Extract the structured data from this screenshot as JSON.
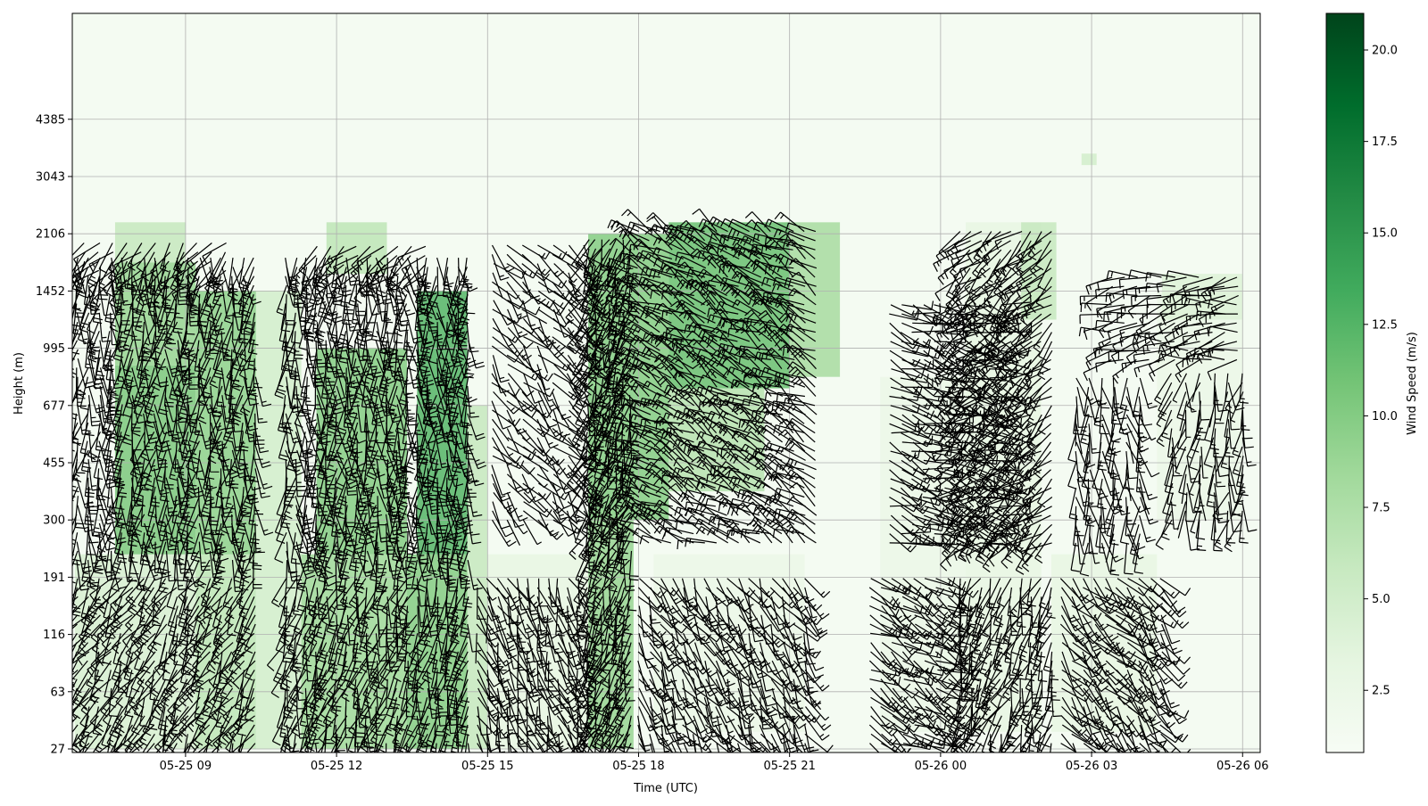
{
  "chart_data": {
    "type": "heatmap",
    "title": "",
    "xlabel": "Time (UTC)",
    "ylabel": "Height (m)",
    "x_tick_labels": [
      "05-25 09",
      "05-25 12",
      "05-25 15",
      "05-25 18",
      "05-25 21",
      "05-26 00",
      "05-26 03",
      "05-26 06"
    ],
    "x_tick_hours": [
      9,
      12,
      15,
      18,
      21,
      24,
      27,
      30
    ],
    "xlim_hours": [
      6.75,
      30.35
    ],
    "y_tick_labels": [
      "27",
      "63",
      "116",
      "191",
      "300",
      "455",
      "677",
      "995",
      "1452",
      "2106",
      "3043",
      "4385"
    ],
    "y_level_count_visible": 12.85,
    "grid": true,
    "colormap": "Greens",
    "colorbar": {
      "label": "Wind Speed (m/s)",
      "min": 0.8,
      "max": 21.0,
      "tick_values": [
        2.5,
        5.0,
        7.5,
        10.0,
        12.5,
        15.0,
        17.5,
        20.0
      ],
      "tick_labels": [
        "2.5",
        "5.0",
        "7.5",
        "10.0",
        "12.5",
        "15.0",
        "17.5",
        "20.0"
      ]
    },
    "levels": [
      {
        "height": "27"
      },
      {
        "height": "63"
      },
      {
        "height": "116"
      },
      {
        "height": "191"
      },
      {
        "height": "300"
      },
      {
        "height": "455"
      },
      {
        "height": "677"
      },
      {
        "height": "995"
      },
      {
        "height": "1452"
      },
      {
        "height": "2106"
      },
      {
        "height": "3043"
      },
      {
        "height": "4385"
      }
    ],
    "speed_regions": [
      {
        "t0": 6.8,
        "t1": 9.2,
        "h0": 0.0,
        "h1": 3.4,
        "speed": 4.5
      },
      {
        "t0": 7.6,
        "t1": 9.2,
        "h0": 3.4,
        "h1": 6.7,
        "speed": 10.5
      },
      {
        "t0": 7.6,
        "t1": 9.2,
        "h0": 6.7,
        "h1": 8.5,
        "speed": 9.0
      },
      {
        "t0": 7.6,
        "t1": 9.0,
        "h0": 8.5,
        "h1": 9.2,
        "speed": 6.0
      },
      {
        "t0": 9.2,
        "t1": 10.4,
        "h0": 0.0,
        "h1": 3.4,
        "speed": 6.5
      },
      {
        "t0": 9.2,
        "t1": 10.4,
        "h0": 3.4,
        "h1": 8.0,
        "speed": 9.5
      },
      {
        "t0": 10.4,
        "t1": 11.3,
        "h0": 0.0,
        "h1": 8.0,
        "speed": 5.0
      },
      {
        "t0": 11.3,
        "t1": 13.4,
        "h0": 0.0,
        "h1": 3.4,
        "speed": 8.5
      },
      {
        "t0": 11.6,
        "t1": 13.4,
        "h0": 3.4,
        "h1": 7.0,
        "speed": 10.0
      },
      {
        "t0": 11.8,
        "t1": 13.0,
        "h0": 8.3,
        "h1": 9.2,
        "speed": 6.5
      },
      {
        "t0": 13.4,
        "t1": 14.6,
        "h0": 0.0,
        "h1": 3.4,
        "speed": 10.0
      },
      {
        "t0": 13.6,
        "t1": 14.6,
        "h0": 3.4,
        "h1": 8.0,
        "speed": 12.5
      },
      {
        "t0": 14.6,
        "t1": 15.0,
        "h0": 0.0,
        "h1": 6.0,
        "speed": 6.0
      },
      {
        "t0": 15.0,
        "t1": 17.0,
        "h0": 0.0,
        "h1": 3.4,
        "speed": 3.0
      },
      {
        "t0": 17.0,
        "t1": 17.9,
        "h0": 0.0,
        "h1": 4.0,
        "speed": 9.0
      },
      {
        "t0": 17.0,
        "t1": 18.6,
        "h0": 4.0,
        "h1": 9.0,
        "speed": 10.0
      },
      {
        "t0": 18.6,
        "t1": 21.0,
        "h0": 6.3,
        "h1": 9.2,
        "speed": 11.5
      },
      {
        "t0": 18.6,
        "t1": 20.5,
        "h0": 4.5,
        "h1": 6.3,
        "speed": 7.0
      },
      {
        "t0": 21.0,
        "t1": 22.0,
        "h0": 6.5,
        "h1": 9.2,
        "speed": 8.0
      },
      {
        "t0": 18.3,
        "t1": 21.3,
        "h0": 0.3,
        "h1": 3.4,
        "speed": 2.5
      },
      {
        "t0": 22.8,
        "t1": 24.5,
        "h0": 0.3,
        "h1": 6.5,
        "speed": 2.5
      },
      {
        "t0": 24.5,
        "t1": 26.0,
        "h0": 0.3,
        "h1": 9.2,
        "speed": 3.0
      },
      {
        "t0": 25.6,
        "t1": 26.3,
        "h0": 7.5,
        "h1": 9.2,
        "speed": 6.0
      },
      {
        "t0": 26.2,
        "t1": 28.3,
        "h0": 0.3,
        "h1": 3.4,
        "speed": 3.0
      },
      {
        "t0": 28.3,
        "t1": 30.0,
        "h0": 4.0,
        "h1": 8.0,
        "speed": 2.5
      },
      {
        "t0": 28.4,
        "t1": 30.0,
        "h0": 7.5,
        "h1": 8.3,
        "speed": 4.0
      },
      {
        "t0": 26.8,
        "t1": 27.1,
        "h0": 10.2,
        "h1": 10.4,
        "speed": 5.0
      }
    ],
    "barb_columns": [
      {
        "t0": 6.85,
        "t1": 10.5,
        "step": 0.22,
        "h0": 0.1,
        "h1": 3.1,
        "dir": 210,
        "mag": 1.3
      },
      {
        "t0": 6.85,
        "t1": 10.5,
        "step": 0.22,
        "h0": 3.3,
        "h1": 8.7,
        "dir": 185,
        "mag": 1.5
      },
      {
        "t0": 7.0,
        "t1": 9.8,
        "step": 0.28,
        "h0": 8.2,
        "h1": 8.9,
        "dir": 220,
        "mag": 1.2
      },
      {
        "t0": 11.0,
        "t1": 14.7,
        "step": 0.2,
        "h0": 0.1,
        "h1": 3.1,
        "dir": 195,
        "mag": 1.4
      },
      {
        "t0": 11.0,
        "t1": 14.7,
        "step": 0.2,
        "h0": 3.3,
        "h1": 8.7,
        "dir": 180,
        "mag": 1.6
      },
      {
        "t0": 11.6,
        "t1": 13.8,
        "step": 0.27,
        "h0": 8.3,
        "h1": 8.9,
        "dir": 230,
        "mag": 1.2
      },
      {
        "t0": 14.8,
        "t1": 16.9,
        "step": 0.2,
        "h0": 0.1,
        "h1": 3.1,
        "dir": 160,
        "mag": 0.9
      },
      {
        "t0": 15.1,
        "t1": 16.9,
        "step": 0.3,
        "h0": 4.0,
        "h1": 8.8,
        "dir": 140,
        "mag": 0.8
      },
      {
        "t0": 17.0,
        "t1": 17.9,
        "step": 0.14,
        "h0": 0.1,
        "h1": 3.1,
        "dir": 200,
        "mag": 1.2
      },
      {
        "t0": 17.0,
        "t1": 17.9,
        "step": 0.14,
        "h0": 3.3,
        "h1": 8.9,
        "dir": 200,
        "mag": 1.4
      },
      {
        "t0": 18.0,
        "t1": 21.3,
        "step": 0.22,
        "h0": 0.1,
        "h1": 3.1,
        "dir": 150,
        "mag": 0.9
      },
      {
        "t0": 18.0,
        "t1": 21.6,
        "step": 0.22,
        "h0": 3.6,
        "h1": 9.1,
        "dir": 300,
        "mag": 1.4
      },
      {
        "t0": 22.6,
        "t1": 24.2,
        "step": 0.22,
        "h0": 0.1,
        "h1": 3.1,
        "dir": 120,
        "mag": 1.0
      },
      {
        "t0": 23.0,
        "t1": 25.4,
        "step": 0.22,
        "h0": 3.6,
        "h1": 7.8,
        "dir": 110,
        "mag": 1.0
      },
      {
        "t0": 24.4,
        "t1": 26.3,
        "step": 0.2,
        "h0": 0.1,
        "h1": 3.1,
        "dir": 200,
        "mag": 1.0
      },
      {
        "t0": 24.4,
        "t1": 26.3,
        "step": 0.2,
        "h0": 3.6,
        "h1": 9.1,
        "dir": 230,
        "mag": 1.1
      },
      {
        "t0": 26.4,
        "t1": 28.4,
        "step": 0.22,
        "h0": 0.1,
        "h1": 3.1,
        "dir": 140,
        "mag": 1.0
      },
      {
        "t0": 26.7,
        "t1": 28.0,
        "step": 0.25,
        "h0": 3.6,
        "h1": 6.6,
        "dir": 175,
        "mag": 0.8
      },
      {
        "t0": 27.4,
        "t1": 30.1,
        "step": 0.25,
        "h0": 6.8,
        "h1": 8.3,
        "dir": 260,
        "mag": 1.2
      },
      {
        "t0": 28.6,
        "t1": 30.1,
        "step": 0.28,
        "h0": 4.0,
        "h1": 6.6,
        "dir": 190,
        "mag": 0.8
      }
    ]
  }
}
